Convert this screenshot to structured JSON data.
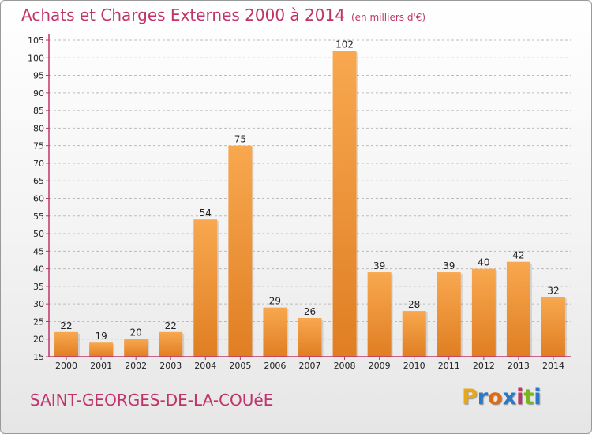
{
  "title": "Achats et Charges Externes 2000 à 2014",
  "subtitle": "(en milliers d'€)",
  "commune": "SAINT-GEORGES-DE-LA-COUéE",
  "logo": {
    "letters": [
      "P",
      "r",
      "o",
      "x",
      "i",
      "t",
      "i"
    ],
    "colors": [
      "#e8a81c",
      "#2b78c4",
      "#e06a12",
      "#2b78c4",
      "#c0346a",
      "#7ab51d",
      "#2b78c4"
    ]
  },
  "colors": {
    "title": "#c0346a",
    "bar_light": "#f8a850",
    "bar_dark": "#e07e22",
    "axis": "#c0346a",
    "grid": "#bcbcbc"
  },
  "chart_data": {
    "type": "bar",
    "categories": [
      "2000",
      "2001",
      "2002",
      "2003",
      "2004",
      "2005",
      "2006",
      "2007",
      "2008",
      "2009",
      "2010",
      "2011",
      "2012",
      "2013",
      "2014"
    ],
    "values": [
      22,
      19,
      20,
      22,
      54,
      75,
      29,
      26,
      102,
      39,
      28,
      39,
      40,
      42,
      32
    ],
    "title": "Achats et Charges Externes 2000 à 2014",
    "subtitle": "(en milliers d'€)",
    "ylim": [
      15,
      105
    ],
    "yticks": [
      15,
      20,
      25,
      30,
      35,
      40,
      45,
      50,
      55,
      60,
      65,
      70,
      75,
      80,
      85,
      90,
      95,
      100,
      105
    ],
    "grid": true,
    "legend": "none"
  }
}
